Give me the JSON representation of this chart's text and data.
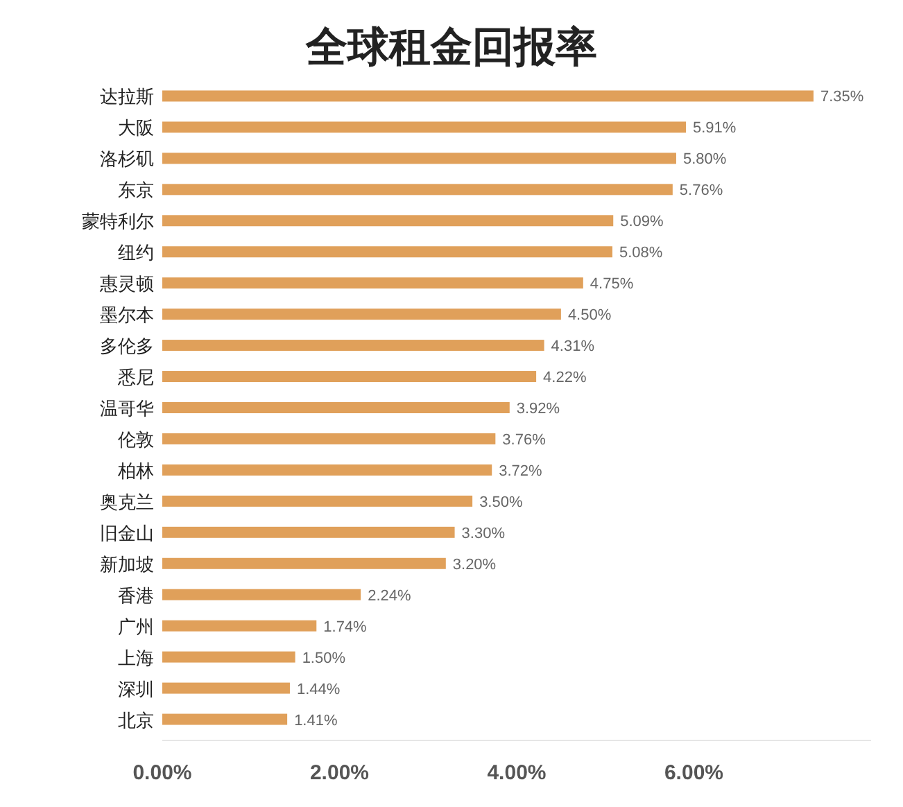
{
  "chart_data": {
    "type": "bar",
    "orientation": "horizontal",
    "title": "全球租金回报率",
    "categories": [
      "达拉斯",
      "大阪",
      "洛杉矶",
      "东京",
      "蒙特利尔",
      "纽约",
      "惠灵顿",
      "墨尔本",
      "多伦多",
      "悉尼",
      "温哥华",
      "伦敦",
      "柏林",
      "奥克兰",
      "旧金山",
      "新加坡",
      "香港",
      "广州",
      "上海",
      "深圳",
      "北京"
    ],
    "values": [
      7.35,
      5.91,
      5.8,
      5.76,
      5.09,
      5.08,
      4.75,
      4.5,
      4.31,
      4.22,
      3.92,
      3.76,
      3.72,
      3.5,
      3.3,
      3.2,
      2.24,
      1.74,
      1.5,
      1.44,
      1.41
    ],
    "value_labels": [
      "7.35%",
      "5.91%",
      "5.80%",
      "5.76%",
      "5.09%",
      "5.08%",
      "4.75%",
      "4.50%",
      "4.31%",
      "4.22%",
      "3.92%",
      "3.76%",
      "3.72%",
      "3.50%",
      "3.30%",
      "3.20%",
      "2.24%",
      "1.74%",
      "1.50%",
      "1.44%",
      "1.41%"
    ],
    "color": "#e0a05a",
    "xlim": [
      0,
      8
    ],
    "xticks": [
      {
        "value": 0,
        "label": "0.00%"
      },
      {
        "value": 2,
        "label": "2.00%"
      },
      {
        "value": 4,
        "label": "4.00%"
      },
      {
        "value": 6,
        "label": "6.00%"
      }
    ]
  }
}
